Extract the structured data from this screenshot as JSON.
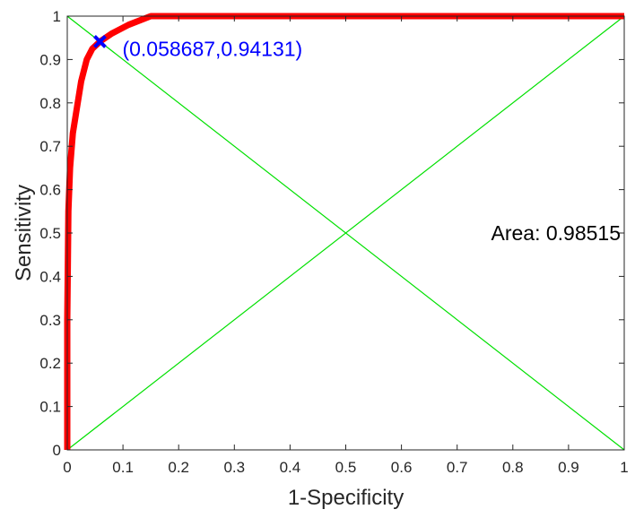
{
  "chart_data": {
    "type": "line",
    "title": "",
    "xlabel": "1-Specificity",
    "ylabel": "Sensitivity",
    "xlim": [
      0,
      1
    ],
    "ylim": [
      0,
      1
    ],
    "xticks": [
      "0",
      "0.1",
      "0.2",
      "0.3",
      "0.4",
      "0.5",
      "0.6",
      "0.7",
      "0.8",
      "0.9",
      "1"
    ],
    "yticks": [
      "0",
      "0.1",
      "0.2",
      "0.3",
      "0.4",
      "0.5",
      "0.6",
      "0.7",
      "0.8",
      "0.9",
      "1"
    ],
    "grid": false,
    "series": [
      {
        "color": "#ff0000",
        "x": [
          0,
          0,
          0.002,
          0.005,
          0.01,
          0.015,
          0.025,
          0.035,
          0.045,
          0.058687,
          0.08,
          0.11,
          0.15,
          0.25,
          0.33,
          1.0
        ],
        "y": [
          0,
          0.3,
          0.55,
          0.65,
          0.73,
          0.77,
          0.85,
          0.9,
          0.925,
          0.94131,
          0.96,
          0.98,
          1.0,
          1.0,
          1.0,
          1.0
        ]
      },
      {
        "color": "#00e000",
        "x": [
          0,
          1
        ],
        "y": [
          0,
          1
        ]
      },
      {
        "color": "#00e000",
        "x": [
          0,
          1
        ],
        "y": [
          1,
          0
        ]
      }
    ],
    "marker": {
      "x": 0.058687,
      "y": 0.94131,
      "symbol": "x",
      "color": "#0000ff"
    },
    "annotations": {
      "point_label": "(0.058687,0.94131)",
      "point_label_color": "#0000ff",
      "area_label": "Area: 0.98515"
    }
  }
}
